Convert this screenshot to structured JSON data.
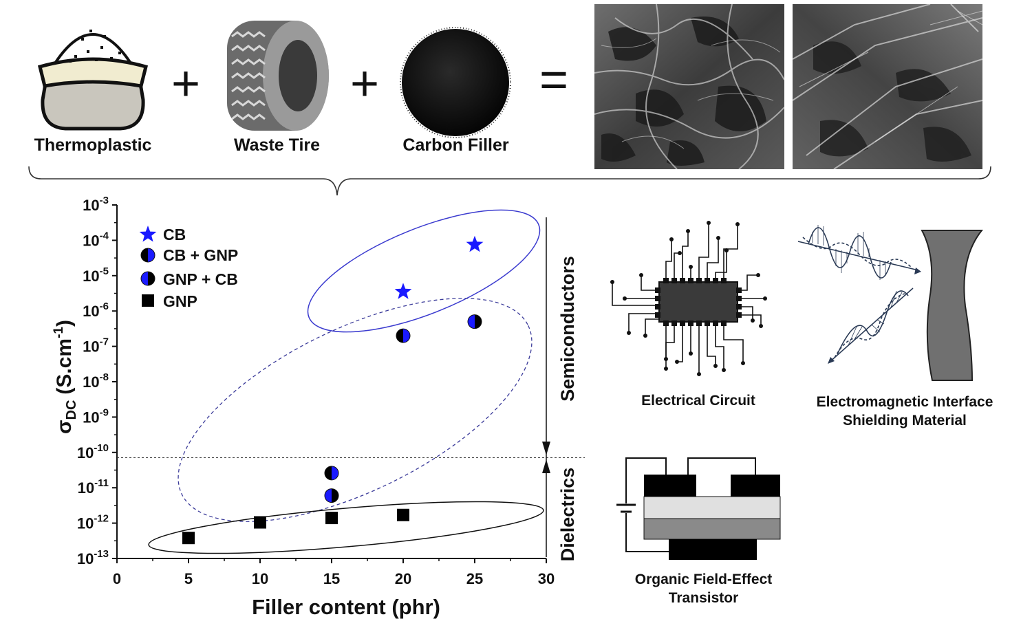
{
  "components": {
    "thermoplastic": "Thermoplastic",
    "waste_tire": "Waste Tire",
    "carbon_filler": "Carbon Filler",
    "plus": "+",
    "equals": "="
  },
  "applications": {
    "circuit": "Electrical Circuit",
    "emi_line1": "Electromagnetic Interface",
    "emi_line2": "Shielding Material",
    "ofet_line1": "Organic Field-Effect",
    "ofet_line2": "Transistor"
  },
  "regions": {
    "upper": "Semiconductors",
    "lower": "Dielectrics",
    "threshold_log10": -10.15
  },
  "chart_data": {
    "type": "scatter",
    "xlabel": "Filler content (phr)",
    "ylabel_symbol": "σ",
    "ylabel_subscript": "DC",
    "ylabel_unit_pre": "(S.cm",
    "ylabel_unit_sup": "-1",
    "ylabel_unit_post": ")",
    "y_scale": "log",
    "xlim": [
      0,
      30
    ],
    "ylim": [
      1e-13,
      0.001
    ],
    "x_ticks": [
      0,
      5,
      10,
      15,
      20,
      25,
      30
    ],
    "y_tick_exponents": [
      -13,
      -12,
      -11,
      -10,
      -9,
      -8,
      -7,
      -6,
      -5,
      -4,
      -3
    ],
    "y_tick_base": "10",
    "legend_position": "top-left",
    "series": [
      {
        "name": "CB",
        "marker": "star",
        "color": "#1a1aff",
        "points": [
          {
            "x": 20,
            "y": 3.5e-06
          },
          {
            "x": 25,
            "y": 7.5e-05
          }
        ]
      },
      {
        "name": "CB + GNP",
        "marker": "half-circle-left-black",
        "color": "#1a1aff",
        "points": [
          {
            "x": 20,
            "y": 2e-07
          },
          {
            "x": 15,
            "y": 2.6e-11
          }
        ]
      },
      {
        "name": "GNP + CB",
        "marker": "half-circle-left-blue",
        "color": "#1a1aff",
        "points": [
          {
            "x": 25,
            "y": 5e-07
          },
          {
            "x": 15,
            "y": 6e-12
          }
        ]
      },
      {
        "name": "GNP",
        "marker": "square",
        "color": "#000000",
        "points": [
          {
            "x": 5,
            "y": 3.8e-13
          },
          {
            "x": 10,
            "y": 1.05e-12
          },
          {
            "x": 15,
            "y": 1.4e-12
          },
          {
            "x": 20,
            "y": 1.7e-12
          }
        ]
      }
    ]
  }
}
